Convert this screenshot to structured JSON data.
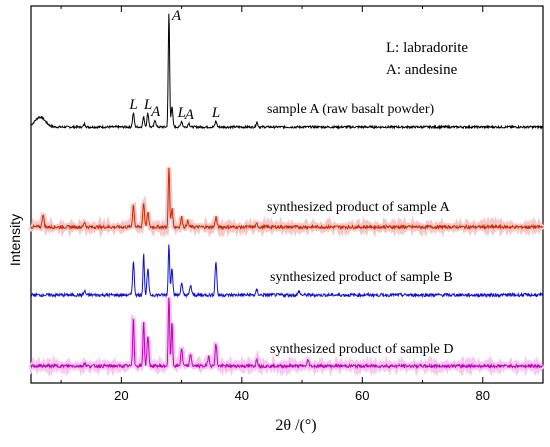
{
  "chart_data": {
    "type": "line",
    "xlabel": "2θ /(°)",
    "ylabel": "Intensity",
    "xlim": [
      5,
      90
    ],
    "xticks": [
      "20",
      "40",
      "60",
      "80"
    ],
    "xtick_values": [
      20,
      40,
      60,
      80
    ],
    "grid": false,
    "legend": {
      "entries": [
        "L: labradorite",
        "A: andesine"
      ],
      "placement": "top-right"
    },
    "series": [
      {
        "name": "sample A (raw basalt powder)",
        "color": "#000000",
        "peaks": [
          {
            "x": 22.0,
            "h": 14,
            "label": "L"
          },
          {
            "x": 23.7,
            "h": 10
          },
          {
            "x": 24.4,
            "h": 14,
            "label": "L"
          },
          {
            "x": 25.6,
            "h": 7,
            "label": "A"
          },
          {
            "x": 27.9,
            "h": 115,
            "label": "A"
          },
          {
            "x": 28.4,
            "h": 20
          },
          {
            "x": 30.0,
            "h": 6,
            "label": "L"
          },
          {
            "x": 31.2,
            "h": 4,
            "label": "A"
          },
          {
            "x": 35.7,
            "h": 6,
            "label": "L"
          },
          {
            "x": 42.5,
            "h": 5
          },
          {
            "x": 13.9,
            "h": 3
          }
        ]
      },
      {
        "name": "synthesized product of sample A",
        "color": "#cc2a00",
        "peaks": [
          {
            "x": 7.0,
            "h": 13
          },
          {
            "x": 13.9,
            "h": 5
          },
          {
            "x": 22.0,
            "h": 22
          },
          {
            "x": 23.7,
            "h": 24
          },
          {
            "x": 24.4,
            "h": 14
          },
          {
            "x": 27.9,
            "h": 60
          },
          {
            "x": 28.4,
            "h": 18
          },
          {
            "x": 30.0,
            "h": 10
          },
          {
            "x": 31.0,
            "h": 6
          },
          {
            "x": 35.7,
            "h": 10
          },
          {
            "x": 42.5,
            "h": 3
          }
        ]
      },
      {
        "name": "synthesized product of sample B",
        "color": "#1010d0",
        "peaks": [
          {
            "x": 13.9,
            "h": 4
          },
          {
            "x": 22.0,
            "h": 33
          },
          {
            "x": 23.7,
            "h": 42
          },
          {
            "x": 24.4,
            "h": 26
          },
          {
            "x": 27.9,
            "h": 52
          },
          {
            "x": 28.4,
            "h": 28
          },
          {
            "x": 30.0,
            "h": 12
          },
          {
            "x": 31.5,
            "h": 10
          },
          {
            "x": 35.7,
            "h": 34
          },
          {
            "x": 42.5,
            "h": 5
          },
          {
            "x": 49.5,
            "h": 4
          }
        ]
      },
      {
        "name": "synthesized product of sample D",
        "color": "#c000c0",
        "peaks": [
          {
            "x": 13.9,
            "h": 3
          },
          {
            "x": 22.0,
            "h": 50
          },
          {
            "x": 23.7,
            "h": 46
          },
          {
            "x": 24.4,
            "h": 30
          },
          {
            "x": 27.9,
            "h": 70
          },
          {
            "x": 28.4,
            "h": 44
          },
          {
            "x": 30.0,
            "h": 18
          },
          {
            "x": 31.5,
            "h": 12
          },
          {
            "x": 34.5,
            "h": 10
          },
          {
            "x": 35.7,
            "h": 22
          },
          {
            "x": 42.5,
            "h": 7
          },
          {
            "x": 51.0,
            "h": 6
          }
        ]
      }
    ]
  }
}
